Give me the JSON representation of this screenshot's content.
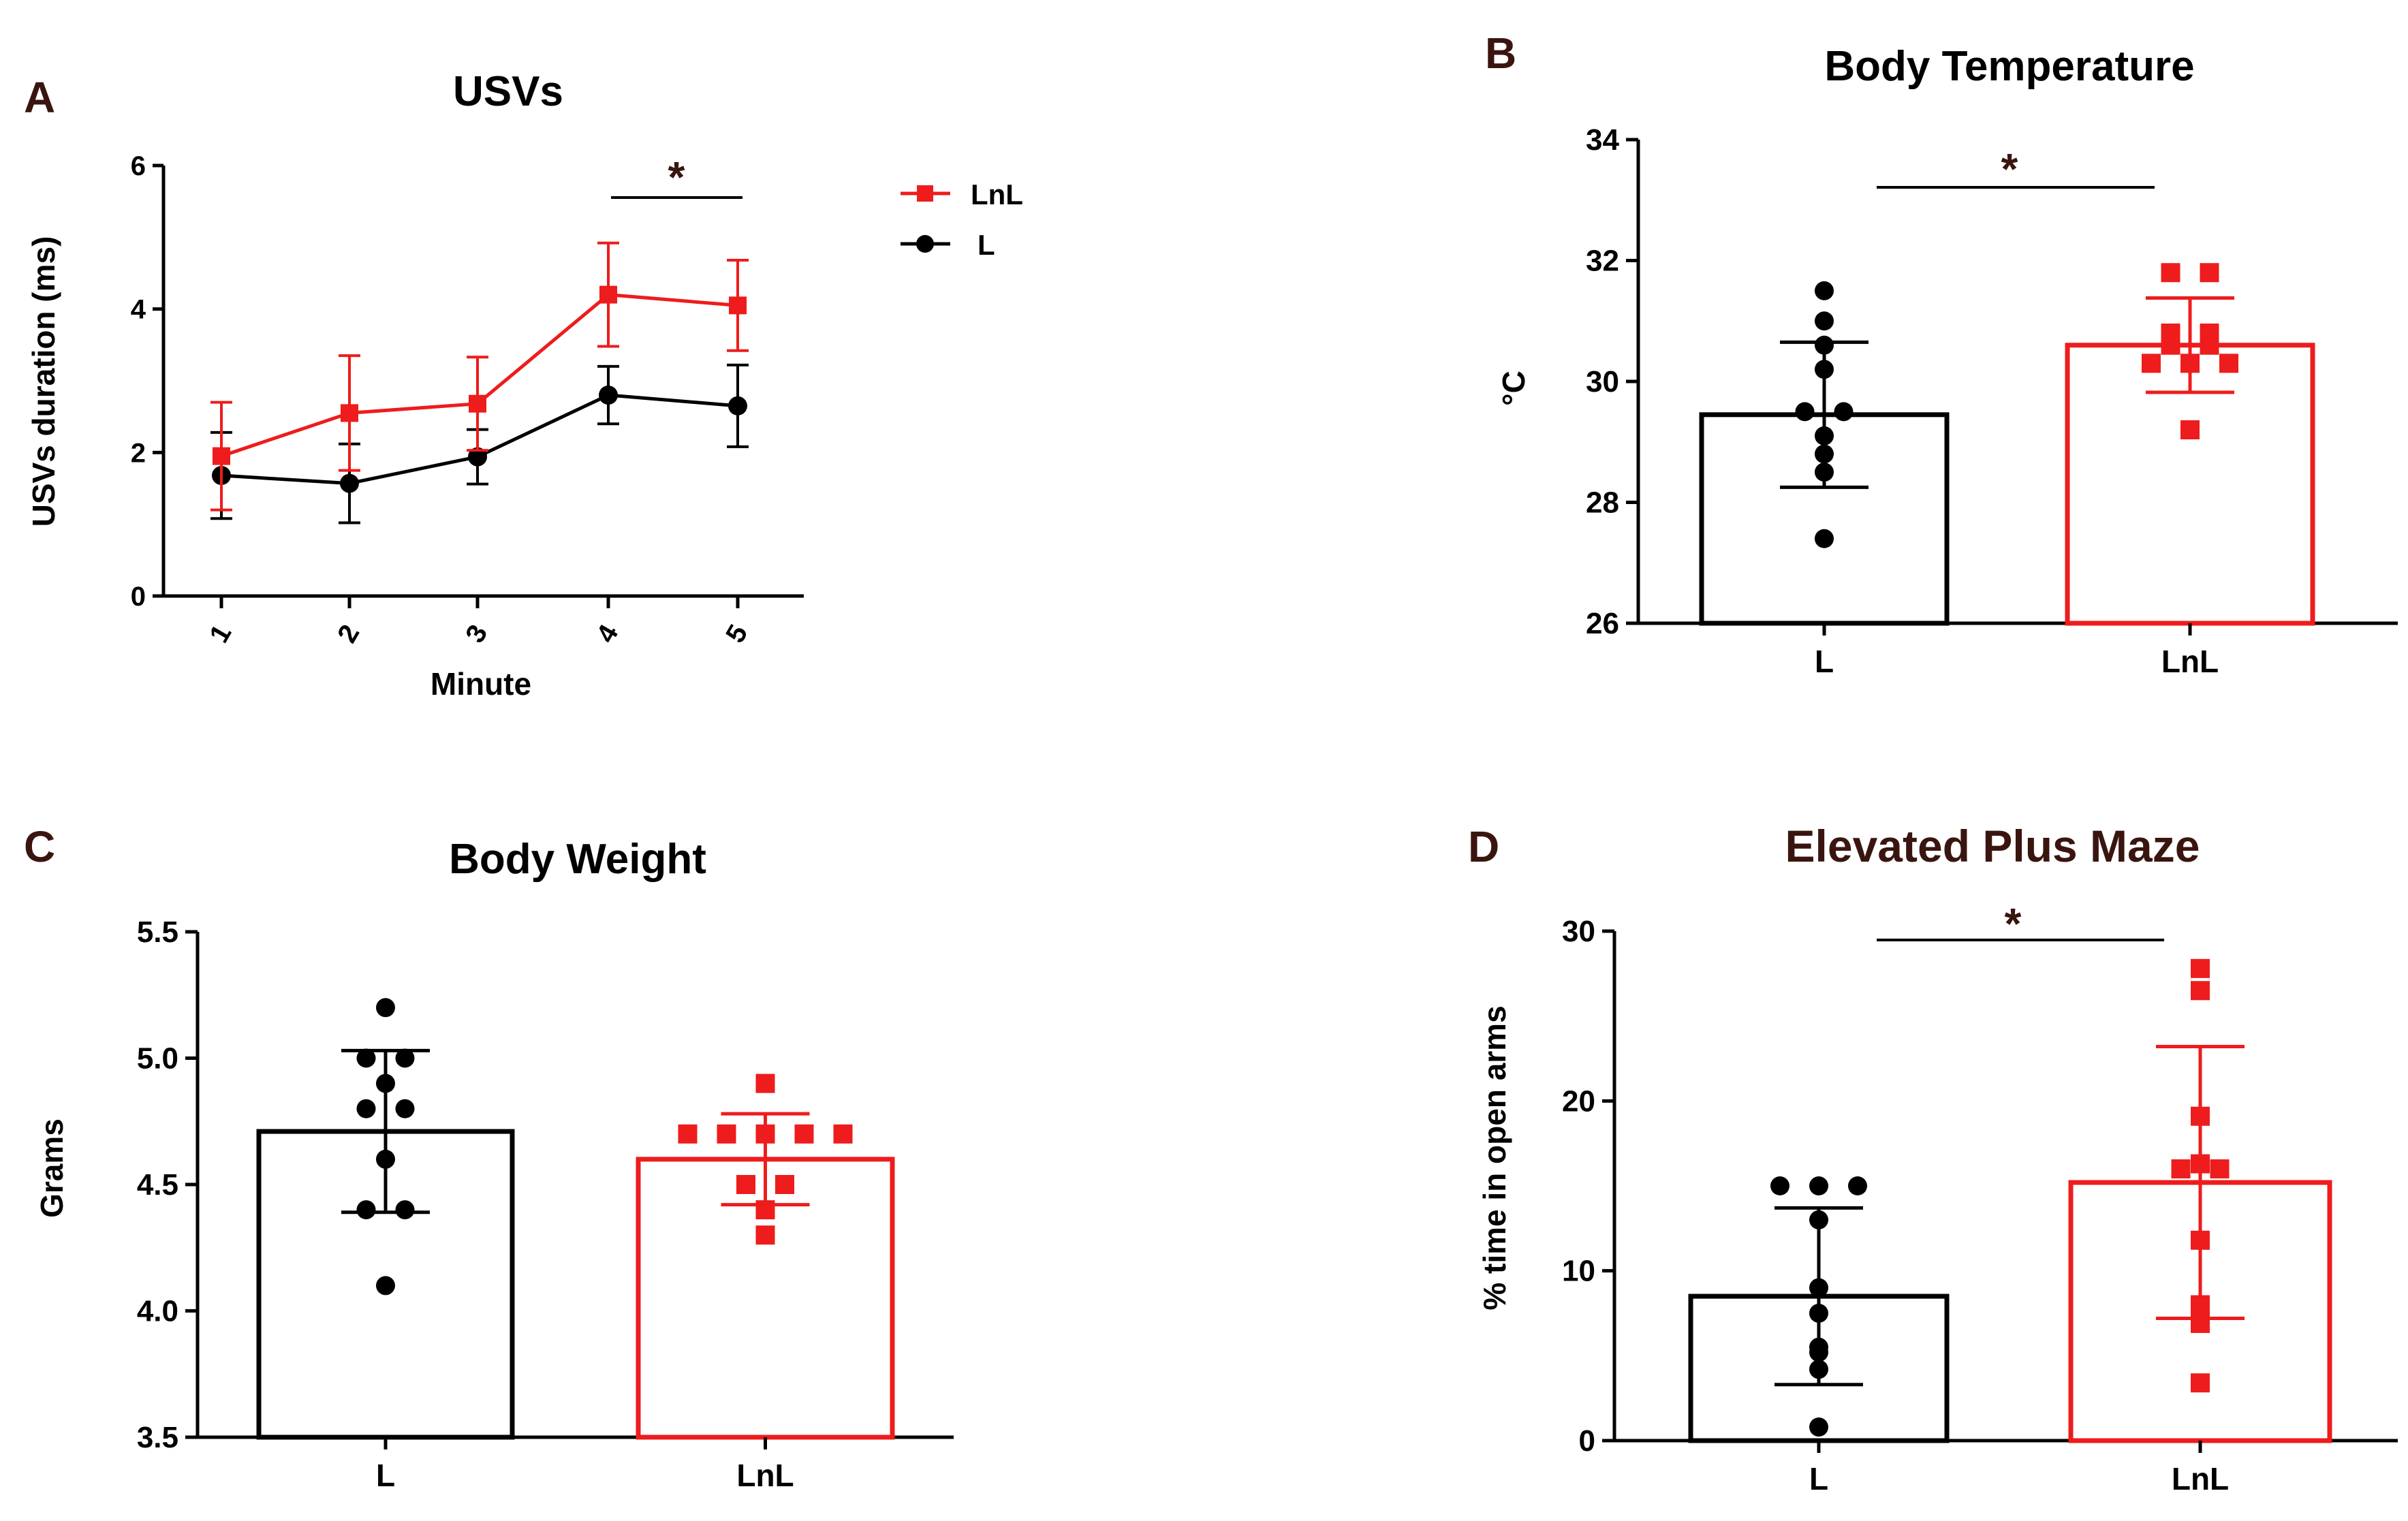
{
  "colors": {
    "L": "#000000",
    "LnL": "#ee1c1c"
  },
  "chart_data": [
    {
      "panel": "A",
      "type": "line",
      "title": "USVs",
      "xlabel": "Minute",
      "ylabel": "USVs duration (ms)",
      "x": [
        "1",
        "2",
        "3",
        "4",
        "5"
      ],
      "ylim": [
        0,
        6
      ],
      "yticks": [
        "0",
        "2",
        "4",
        "6"
      ],
      "series": [
        {
          "name": "LnL",
          "values": [
            1.95,
            2.55,
            2.68,
            4.2,
            4.05
          ],
          "error": [
            0.75,
            0.8,
            0.65,
            0.72,
            0.63
          ]
        },
        {
          "name": "L",
          "values": [
            1.68,
            1.57,
            1.94,
            2.8,
            2.65
          ],
          "error": [
            0.6,
            0.55,
            0.38,
            0.4,
            0.57
          ]
        }
      ],
      "significance": "*",
      "legend": "right",
      "grid": false
    },
    {
      "panel": "B",
      "type": "bar",
      "title": "Body Temperature",
      "ylabel": "°C",
      "categories": [
        "L",
        "LnL"
      ],
      "ylim": [
        26,
        34
      ],
      "yticks": [
        "26",
        "28",
        "30",
        "32",
        "34"
      ],
      "series": [
        {
          "name": "L",
          "mean": 29.45,
          "sd": 1.2,
          "points": [
            31.5,
            31.0,
            30.6,
            30.2,
            29.5,
            29.5,
            29.1,
            28.8,
            28.5,
            27.4
          ]
        },
        {
          "name": "LnL",
          "mean": 30.6,
          "sd": 0.78,
          "points": [
            31.8,
            31.8,
            30.8,
            30.6,
            30.8,
            30.6,
            30.3,
            30.3,
            30.3,
            29.2
          ]
        }
      ],
      "significance": "*",
      "grid": false
    },
    {
      "panel": "C",
      "type": "bar",
      "title": "Body Weight",
      "ylabel": "Grams",
      "categories": [
        "L",
        "LnL"
      ],
      "ylim": [
        3.5,
        5.5
      ],
      "yticks": [
        "3.5",
        "4.0",
        "4.5",
        "5.0",
        "5.5"
      ],
      "series": [
        {
          "name": "L",
          "mean": 4.71,
          "sd": 0.32,
          "points": [
            5.2,
            5.0,
            5.0,
            4.9,
            4.8,
            4.8,
            4.6,
            4.4,
            4.4,
            4.1
          ]
        },
        {
          "name": "LnL",
          "mean": 4.6,
          "sd": 0.18,
          "points": [
            4.9,
            4.7,
            4.7,
            4.7,
            4.7,
            4.7,
            4.5,
            4.5,
            4.4,
            4.3
          ]
        }
      ],
      "grid": false
    },
    {
      "panel": "D",
      "type": "bar",
      "title": "Elevated Plus Maze",
      "ylabel": "% time in open arms",
      "categories": [
        "L",
        "LnL"
      ],
      "ylim": [
        0,
        30
      ],
      "yticks": [
        "0",
        "10",
        "20",
        "30"
      ],
      "series": [
        {
          "name": "L",
          "mean": 8.5,
          "sd": 5.2,
          "points": [
            15.0,
            15.0,
            15.0,
            13.0,
            9.0,
            7.5,
            5.5,
            5.2,
            4.2,
            0.8
          ]
        },
        {
          "name": "LnL",
          "mean": 15.2,
          "sd": 8.0,
          "points": [
            27.8,
            26.5,
            19.1,
            16.0,
            16.0,
            16.3,
            11.8,
            8.0,
            6.9,
            3.4
          ]
        }
      ],
      "significance": "*",
      "grid": false
    }
  ],
  "panels": {
    "A": {
      "letter": "A",
      "title": "USVs",
      "ylabel": "USVs duration (ms)",
      "xlabel": "Minute",
      "star": "*",
      "legend": [
        "LnL",
        "L"
      ]
    },
    "B": {
      "letter": "B",
      "title": "Body Temperature",
      "ylabel": "°C",
      "star": "*"
    },
    "C": {
      "letter": "C",
      "title": "Body Weight",
      "ylabel": "Grams"
    },
    "D": {
      "letter": "D",
      "title": "Elevated Plus Maze",
      "ylabel": "% time in open arms",
      "star": "*"
    }
  }
}
